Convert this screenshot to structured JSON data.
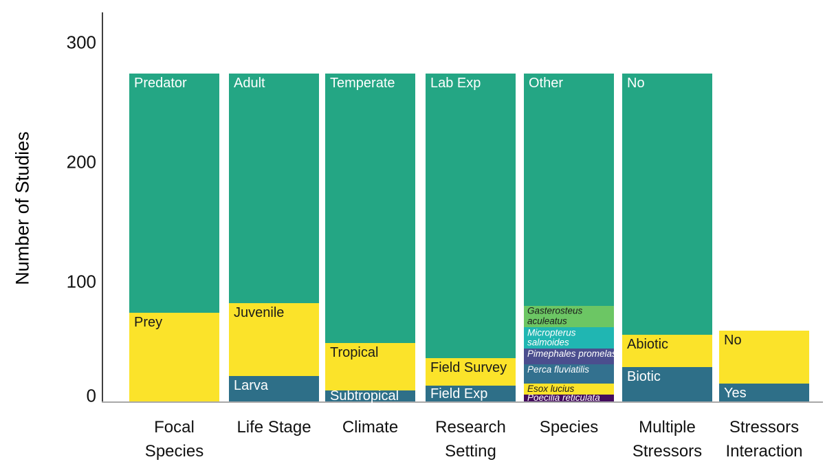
{
  "chart_data": {
    "type": "bar",
    "stacked": true,
    "title": "",
    "ylabel": "Number of Studies",
    "xlabel": "",
    "ylim": [
      0,
      300
    ],
    "yticks": [
      0,
      100,
      200,
      300
    ],
    "grid": false,
    "legend_position": "labels-inside-segments",
    "axis": {
      "y_line_color": "#3F3F3F",
      "x_line_color": "#A8A8A8",
      "tick_text_color": "#121212"
    },
    "categories": [
      {
        "label": "Focal Species",
        "label_lines": [
          "Focal",
          "Species"
        ],
        "segments": [
          {
            "name": "Prey",
            "value": 74,
            "color": "#FBE32A",
            "label_color": "#1A1A1A"
          },
          {
            "name": "Predator",
            "value": 200,
            "color": "#24A684",
            "label_color": "#FFFFFF"
          }
        ]
      },
      {
        "label": "Life Stage",
        "label_lines": [
          "Life Stage"
        ],
        "segments": [
          {
            "name": "Larva",
            "value": 21,
            "color": "#2E6F88",
            "label_color": "#FFFFFF"
          },
          {
            "name": "Juvenile",
            "value": 61,
            "color": "#FBE32A",
            "label_color": "#1A1A1A"
          },
          {
            "name": "Adult",
            "value": 192,
            "color": "#24A684",
            "label_color": "#FFFFFF"
          }
        ]
      },
      {
        "label": "Climate",
        "label_lines": [
          "Climate"
        ],
        "segments": [
          {
            "name": "Subtropical",
            "value": 9,
            "color": "#2E6F88",
            "label_color": "#FFFFFF"
          },
          {
            "name": "Tropical",
            "value": 40,
            "color": "#FBE32A",
            "label_color": "#1A1A1A"
          },
          {
            "name": "Temperate",
            "value": 225,
            "color": "#24A684",
            "label_color": "#FFFFFF"
          }
        ]
      },
      {
        "label": "Research Setting",
        "label_lines": [
          "Research",
          "Setting"
        ],
        "segments": [
          {
            "name": "Field Exp",
            "value": 13,
            "color": "#2E6F88",
            "label_color": "#FFFFFF"
          },
          {
            "name": "Field Survey",
            "value": 23,
            "color": "#FBE32A",
            "label_color": "#1A1A1A"
          },
          {
            "name": "Lab Exp",
            "value": 238,
            "color": "#24A684",
            "label_color": "#FFFFFF"
          }
        ]
      },
      {
        "label": "Species",
        "label_lines": [
          "Species"
        ],
        "segments": [
          {
            "name": "Poecilia reticulata",
            "value": 6,
            "color": "#440D5E",
            "label_color": "#FFFFFF",
            "italic": true,
            "small": true
          },
          {
            "name": "Esox lucius",
            "value": 9,
            "color": "#FBE32A",
            "label_color": "#1A1A1A",
            "italic": true,
            "small": true
          },
          {
            "name": "Perca fluviatilis",
            "value": 16,
            "color": "#33718F",
            "label_color": "#FFFFFF",
            "italic": true,
            "small": true
          },
          {
            "name": "Pimephales promelas",
            "value": 13,
            "color": "#4B4E8E",
            "label_color": "#FFFFFF",
            "italic": true,
            "small": true
          },
          {
            "name": "Micropterus salmoides",
            "value": 18,
            "color": "#20B6B2",
            "label_color": "#FFFFFF",
            "italic": true,
            "small": true,
            "label_lines": [
              "Micropterus",
              "salmoides"
            ]
          },
          {
            "name": "Gasterosteus aculeatus",
            "value": 18,
            "color": "#6CC664",
            "label_color": "#1A1A1A",
            "italic": true,
            "small": true,
            "label_lines": [
              "Gasterosteus",
              "aculeatus"
            ]
          },
          {
            "name": "Other",
            "value": 194,
            "color": "#24A684",
            "label_color": "#FFFFFF"
          }
        ]
      },
      {
        "label": "Multiple Stressors",
        "label_lines": [
          "Multiple",
          "Stressors"
        ],
        "segments": [
          {
            "name": "Biotic",
            "value": 29,
            "color": "#2E6F88",
            "label_color": "#FFFFFF"
          },
          {
            "name": "Abiotic",
            "value": 27,
            "color": "#FBE32A",
            "label_color": "#1A1A1A"
          },
          {
            "name": "No",
            "value": 218,
            "color": "#24A684",
            "label_color": "#FFFFFF"
          }
        ]
      },
      {
        "label": "Stressors Interaction",
        "label_lines": [
          "Stressors",
          "Interaction"
        ],
        "segments": [
          {
            "name": "Yes",
            "value": 15,
            "color": "#2E6F88",
            "label_color": "#FFFFFF"
          },
          {
            "name": "No",
            "value": 44,
            "color": "#FBE32A",
            "label_color": "#1A1A1A"
          }
        ]
      }
    ]
  }
}
